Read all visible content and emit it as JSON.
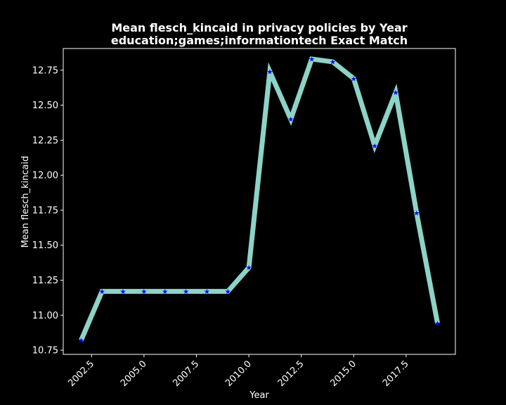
{
  "chart_data": {
    "type": "line",
    "title": "Mean flesch_kincaid in privacy policies by Year\neducation;games;informationtech Exact Match",
    "title_lines": [
      "Mean flesch_kincaid in privacy policies by Year",
      "education;games;informationtech Exact Match"
    ],
    "xlabel": "Year",
    "ylabel": "Mean flesch_kincaid",
    "xlim": [
      2001.15,
      2019.85
    ],
    "ylim": [
      10.72,
      12.905
    ],
    "xticks": [
      2002.5,
      2005.0,
      2007.5,
      2010.0,
      2012.5,
      2015.0,
      2017.5
    ],
    "xtick_labels": [
      "2002.5",
      "2005.0",
      "2007.5",
      "2010.0",
      "2012.5",
      "2015.0",
      "2017.5"
    ],
    "yticks": [
      10.75,
      11.0,
      11.25,
      11.5,
      11.75,
      12.0,
      12.25,
      12.5,
      12.75
    ],
    "ytick_labels": [
      "10.75",
      "11.00",
      "11.25",
      "11.50",
      "11.75",
      "12.00",
      "12.25",
      "12.50",
      "12.75"
    ],
    "grid": false,
    "line_color": "#8dd3c7",
    "marker_color": "#0000ff",
    "background": "#000000",
    "x": [
      2002,
      2003,
      2004,
      2005,
      2006,
      2007,
      2008,
      2009,
      2010,
      2011,
      2012,
      2013,
      2014,
      2015,
      2016,
      2017,
      2018,
      2019
    ],
    "series": [
      {
        "values": [
          10.82,
          11.17,
          11.17,
          11.17,
          11.17,
          11.17,
          11.17,
          11.17,
          11.34,
          12.74,
          12.4,
          12.83,
          12.81,
          12.69,
          12.21,
          12.59,
          11.73,
          10.94
        ]
      }
    ]
  }
}
